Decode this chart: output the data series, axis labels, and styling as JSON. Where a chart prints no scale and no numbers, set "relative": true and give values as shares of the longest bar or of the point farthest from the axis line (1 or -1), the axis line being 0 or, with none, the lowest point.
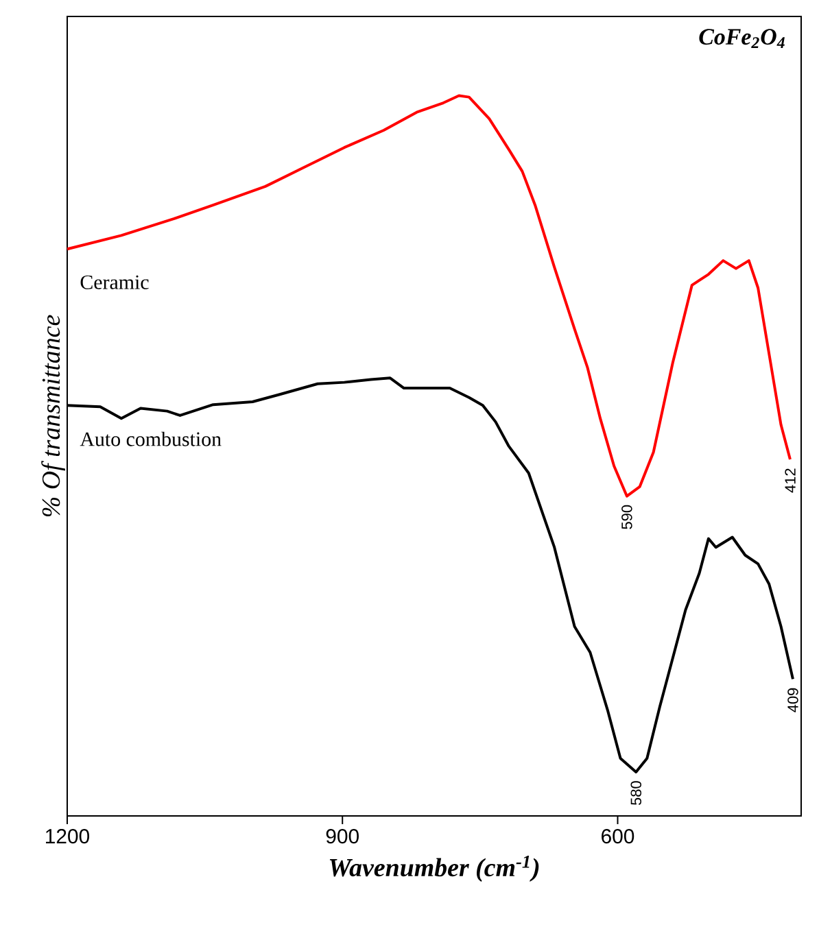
{
  "chart_data": {
    "type": "line",
    "title": "CoFe$_{2}$O$_{4}$",
    "xlabel": "Wavenumber (cm$^{-1}$)",
    "ylabel": "% Of transmittance",
    "relative": true,
    "xlim": [
      1200,
      400
    ],
    "xticks": [
      1200,
      900,
      600
    ],
    "tick_labels": "x",
    "marker": "none",
    "line_style": "solid",
    "series": [
      {
        "name": "Ceramic",
        "color": "#ff0000",
        "x": [
          1200,
          1141,
          1084,
          1041,
          984,
          941,
          898,
          855,
          819,
          790,
          773,
          762,
          740,
          718,
          704,
          690,
          669,
          647,
          633,
          619,
          604,
          590,
          576,
          561,
          540,
          519,
          501,
          485,
          471,
          457,
          447,
          432,
          422,
          412
        ],
        "values": [
          0.787,
          0.806,
          0.829,
          0.848,
          0.874,
          0.901,
          0.928,
          0.952,
          0.977,
          0.99,
          1.0,
          0.998,
          0.968,
          0.924,
          0.895,
          0.848,
          0.762,
          0.676,
          0.623,
          0.552,
          0.486,
          0.444,
          0.457,
          0.505,
          0.629,
          0.737,
          0.752,
          0.771,
          0.76,
          0.771,
          0.733,
          0.619,
          0.543,
          0.495
        ]
      },
      {
        "name": "Auto combustion",
        "color": "#000000",
        "x": [
          1200,
          1164,
          1141,
          1120,
          1091,
          1077,
          1041,
          998,
          969,
          927,
          898,
          869,
          848,
          833,
          798,
          783,
          762,
          747,
          733,
          719,
          697,
          669,
          647,
          630,
          611,
          597,
          580,
          568,
          554,
          540,
          526,
          511,
          501,
          493,
          475,
          461,
          447,
          435,
          422,
          409
        ],
        "values": [
          0.57,
          0.568,
          0.552,
          0.566,
          0.562,
          0.556,
          0.571,
          0.575,
          0.585,
          0.6,
          0.602,
          0.606,
          0.608,
          0.594,
          0.594,
          0.594,
          0.581,
          0.57,
          0.547,
          0.514,
          0.476,
          0.373,
          0.263,
          0.227,
          0.147,
          0.08,
          0.061,
          0.08,
          0.152,
          0.219,
          0.286,
          0.337,
          0.385,
          0.373,
          0.387,
          0.362,
          0.35,
          0.322,
          0.263,
          0.19
        ]
      }
    ],
    "annotations": [
      {
        "text": "590",
        "x": 590,
        "y": 0.444
      },
      {
        "text": "412",
        "x": 412,
        "y": 0.495
      },
      {
        "text": "580",
        "x": 580,
        "y": 0.061
      },
      {
        "text": "409",
        "x": 409,
        "y": 0.19
      }
    ]
  }
}
